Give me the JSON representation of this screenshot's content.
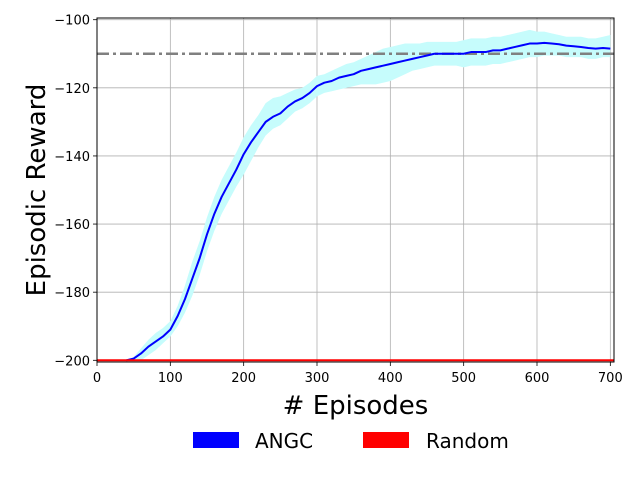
{
  "chart_data": {
    "type": "line",
    "title": "",
    "xlabel": "# Episodes",
    "ylabel": "Episodic Reward",
    "xlim": [
      0,
      705
    ],
    "ylim": [
      -200.5,
      -99.5
    ],
    "xticks": [
      0,
      100,
      200,
      300,
      400,
      500,
      600,
      700
    ],
    "yticks": [
      -200,
      -180,
      -160,
      -140,
      -120,
      -100
    ],
    "grid": true,
    "legend_position": "bottom-center",
    "series": [
      {
        "name": "ANGC",
        "color": "#0000ff",
        "fill_color": "#c6fcfc",
        "x": [
          40,
          50,
          60,
          70,
          80,
          90,
          100,
          110,
          120,
          130,
          140,
          150,
          160,
          170,
          180,
          190,
          200,
          210,
          220,
          230,
          240,
          250,
          260,
          270,
          280,
          290,
          300,
          310,
          320,
          330,
          340,
          350,
          360,
          370,
          380,
          390,
          400,
          410,
          420,
          430,
          440,
          450,
          460,
          470,
          480,
          490,
          500,
          510,
          520,
          530,
          540,
          550,
          560,
          570,
          580,
          590,
          600,
          610,
          620,
          630,
          640,
          650,
          660,
          670,
          680,
          690,
          700
        ],
        "y": [
          -200,
          -199.5,
          -198,
          -196,
          -194.5,
          -193,
          -191,
          -187,
          -182,
          -176,
          -170,
          -163,
          -157,
          -152,
          -148,
          -144,
          -139.5,
          -136,
          -133,
          -130,
          -128.5,
          -127.5,
          -125.5,
          -124,
          -123,
          -121.5,
          -119.5,
          -118.5,
          -118,
          -117,
          -116.5,
          -116,
          -115,
          -114.5,
          -114,
          -113.5,
          -113,
          -112.5,
          -112,
          -111.5,
          -111,
          -110.5,
          -110,
          -110,
          -110,
          -110,
          -110,
          -109.5,
          -109.5,
          -109.5,
          -109,
          -109,
          -108.5,
          -108,
          -107.5,
          -107,
          -107,
          -106.8,
          -107,
          -107.2,
          -107.6,
          -107.8,
          -108,
          -108.3,
          -108.5,
          -108.3,
          -108.5
        ],
        "lower": [
          -200,
          -200,
          -200,
          -198.5,
          -197,
          -195,
          -193,
          -190,
          -186,
          -181,
          -175,
          -168,
          -162,
          -157,
          -153,
          -149,
          -145.5,
          -141.5,
          -137.5,
          -134,
          -132,
          -131,
          -129,
          -127,
          -126,
          -124.5,
          -122.5,
          -121.5,
          -121,
          -120.5,
          -120,
          -119.5,
          -119,
          -119,
          -119,
          -118.5,
          -118,
          -117,
          -116,
          -115,
          -114.5,
          -114,
          -113.5,
          -113.5,
          -113.5,
          -113.5,
          -114,
          -113.5,
          -113.5,
          -113.5,
          -113,
          -113,
          -112.5,
          -112,
          -111.5,
          -111,
          -111,
          -110.5,
          -110.5,
          -110.5,
          -111,
          -111,
          -111,
          -111.5,
          -111.5,
          -111,
          -111
        ],
        "upper": [
          -200,
          -199,
          -196.5,
          -194,
          -192,
          -190.5,
          -188.5,
          -184,
          -178,
          -171,
          -165,
          -158,
          -152,
          -147,
          -143,
          -139,
          -134.5,
          -131,
          -128,
          -124.5,
          -123,
          -122.5,
          -121.5,
          -120.5,
          -120,
          -118.5,
          -116.5,
          -116,
          -115,
          -114,
          -113,
          -112.5,
          -111.5,
          -110.5,
          -109.5,
          -108.5,
          -108,
          -107.5,
          -107,
          -107,
          -107,
          -106.5,
          -106.5,
          -106.5,
          -106.5,
          -106.5,
          -106,
          -105.5,
          -105.5,
          -105.5,
          -105,
          -105,
          -104.5,
          -104,
          -103.5,
          -103,
          -103.5,
          -103.5,
          -104,
          -104.5,
          -105,
          -105,
          -105,
          -105.5,
          -105.5,
          -105,
          -104.5
        ]
      },
      {
        "name": "Random",
        "color": "#ff0000",
        "x": [
          0,
          705
        ],
        "y": [
          -200,
          -200
        ]
      }
    ],
    "reference_line": {
      "y": -110,
      "style": "dash-dot",
      "color": "#808080"
    }
  }
}
